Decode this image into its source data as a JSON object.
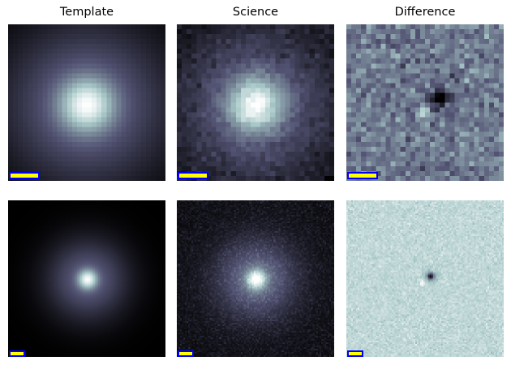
{
  "columns": [
    {
      "title": "Template"
    },
    {
      "title": "Science"
    },
    {
      "title": "Difference"
    }
  ],
  "colormap": "bone",
  "scale_bar": {
    "fill_color": "#ffff00",
    "edge_color": "#0000ff"
  },
  "rows": [
    {
      "panels": [
        "template",
        "science",
        "difference"
      ]
    },
    {
      "panels": [
        "template",
        "science",
        "difference"
      ]
    }
  ]
}
